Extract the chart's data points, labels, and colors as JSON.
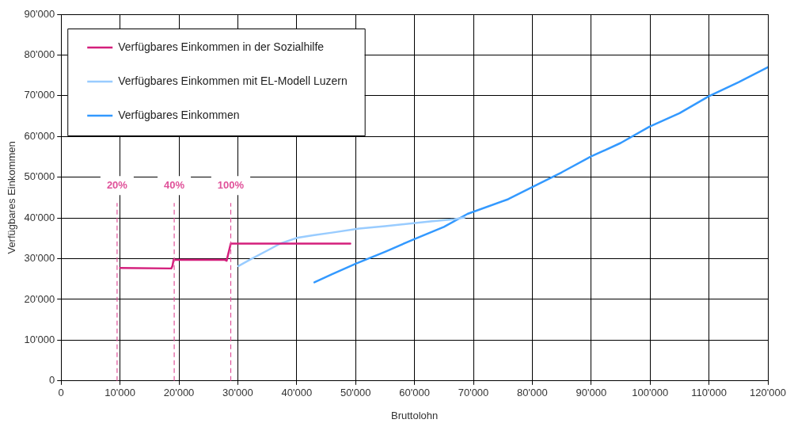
{
  "chart_data": {
    "type": "line",
    "xlabel": "Bruttolohn",
    "ylabel": "Verfügbares Einkommen",
    "xlim": [
      0,
      120000
    ],
    "ylim": [
      0,
      90000
    ],
    "xticks": [
      {
        "value": 0,
        "label": "0"
      },
      {
        "value": 10000,
        "label": "10'000"
      },
      {
        "value": 20000,
        "label": "20'000"
      },
      {
        "value": 30000,
        "label": "30'000"
      },
      {
        "value": 40000,
        "label": "40'000"
      },
      {
        "value": 50000,
        "label": "50'000"
      },
      {
        "value": 60000,
        "label": "60'000"
      },
      {
        "value": 70000,
        "label": "70'000"
      },
      {
        "value": 80000,
        "label": "80'000"
      },
      {
        "value": 90000,
        "label": "90'000"
      },
      {
        "value": 100000,
        "label": "100'000"
      },
      {
        "value": 110000,
        "label": "110'000"
      },
      {
        "value": 120000,
        "label": "120'000"
      }
    ],
    "yticks": [
      {
        "value": 0,
        "label": "0"
      },
      {
        "value": 10000,
        "label": "10'000"
      },
      {
        "value": 20000,
        "label": "20'000"
      },
      {
        "value": 30000,
        "label": "30'000"
      },
      {
        "value": 40000,
        "label": "40'000"
      },
      {
        "value": 50000,
        "label": "50'000"
      },
      {
        "value": 60000,
        "label": "60'000"
      },
      {
        "value": 70000,
        "label": "70'000"
      },
      {
        "value": 80000,
        "label": "80'000"
      },
      {
        "value": 90000,
        "label": "90'000"
      }
    ],
    "grid": true,
    "legend": "top left",
    "marker": "none",
    "line_style": "solid",
    "series": [
      {
        "name": "Verfügbares Einkommen in der Sozialhilfe",
        "color": "#d41f7c",
        "x": [
          10000,
          18700,
          18900,
          19100,
          27800,
          28100,
          28800,
          49100
        ],
        "values": [
          27700,
          27600,
          28200,
          29700,
          29700,
          29500,
          33700,
          33700
        ]
      },
      {
        "name": "Verfügbares Einkommen mit EL-Modell Luzern",
        "color": "#99ccff",
        "x": [
          30100,
          32100,
          35000,
          37200,
          40000,
          43000,
          46000,
          50600,
          55000,
          59800,
          63000,
          66700,
          68500
        ],
        "values": [
          28200,
          29800,
          32000,
          33700,
          35100,
          35800,
          36400,
          37400,
          38000,
          38700,
          39200,
          39700,
          40100
        ]
      },
      {
        "name": "Verfügbares Einkommen",
        "color": "#3399ff",
        "x": [
          43000,
          46000,
          50100,
          55000,
          59800,
          65000,
          69000,
          75900,
          80000,
          85000,
          90000,
          95000,
          99900,
          105000,
          110000,
          115000,
          120000
        ],
        "values": [
          24200,
          26200,
          28800,
          31700,
          34700,
          37800,
          41000,
          44600,
          47600,
          51200,
          55100,
          58400,
          62400,
          65700,
          69900,
          73300,
          77000
        ]
      }
    ],
    "ref_lines": [
      {
        "axis": "x",
        "value": 9500,
        "color": "#e0529a",
        "line_style": "dashed"
      },
      {
        "axis": "x",
        "value": 19200,
        "color": "#e0529a",
        "line_style": "dashed"
      },
      {
        "axis": "x",
        "value": 28800,
        "color": "#e0529a",
        "line_style": "dashed"
      }
    ],
    "annotations": [
      "20%",
      "40%",
      "100%"
    ]
  }
}
